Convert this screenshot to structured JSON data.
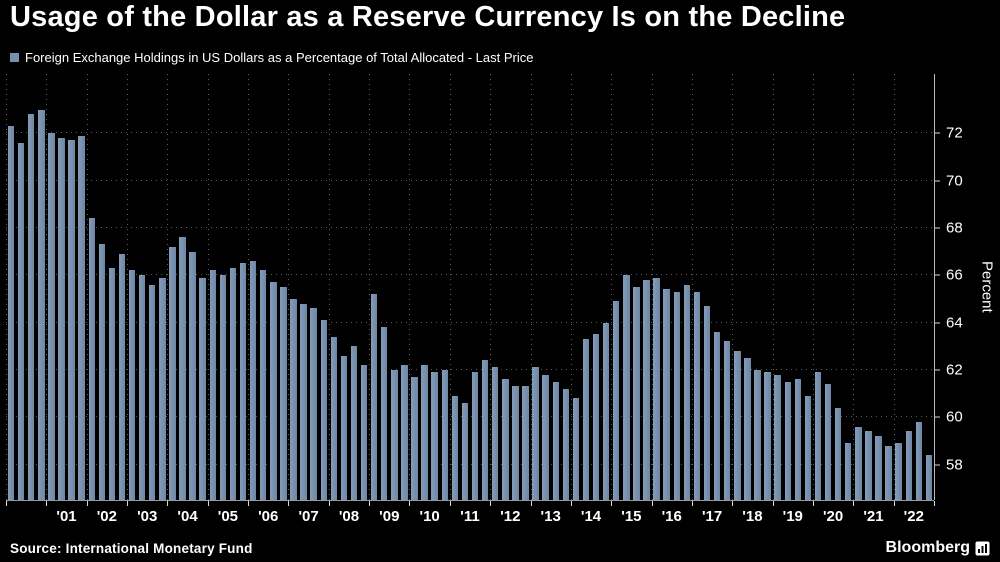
{
  "title": "Usage of the Dollar as a Reserve Currency Is on the Decline",
  "legend": {
    "label": "Foreign Exchange Holdings in US Dollars as a Percentage of Total Allocated - Last Price",
    "marker_color": "#7590ac"
  },
  "footer": {
    "source": "Source: International Monetary Fund",
    "brand": "Bloomberg"
  },
  "colors": {
    "background": "#000000",
    "bar": "#7590ac",
    "grid": "#5a5a5a",
    "text": "#ffffff"
  },
  "chart_data": {
    "type": "bar",
    "title": "Usage of the Dollar as a Reserve Currency Is on the Decline",
    "series_name": "Foreign Exchange Holdings in US Dollars as a Percentage of Total Allocated - Last Price",
    "xlabel": "",
    "ylabel": "Percent",
    "yticks": [
      58,
      60,
      62,
      64,
      66,
      68,
      70,
      72
    ],
    "ylim": [
      56.5,
      74.5
    ],
    "frequency": "quarterly",
    "x_start": "2000 Q1",
    "x_end": "2022 Q4",
    "year_labels": [
      "'01",
      "'02",
      "'03",
      "'04",
      "'05",
      "'06",
      "'07",
      "'08",
      "'09",
      "'10",
      "'11",
      "'12",
      "'13",
      "'14",
      "'15",
      "'16",
      "'17",
      "'18",
      "'19",
      "'20",
      "'21",
      "'22"
    ],
    "values": [
      72.3,
      71.6,
      72.8,
      73.0,
      72.0,
      71.8,
      71.7,
      71.9,
      68.4,
      67.3,
      66.3,
      66.9,
      66.2,
      66.0,
      65.6,
      65.9,
      67.2,
      67.6,
      67.0,
      65.9,
      66.2,
      66.0,
      66.3,
      66.5,
      66.6,
      66.2,
      65.7,
      65.5,
      65.0,
      64.8,
      64.6,
      64.1,
      63.4,
      62.6,
      63.0,
      62.2,
      65.2,
      63.8,
      62.0,
      62.2,
      61.7,
      62.2,
      61.9,
      62.0,
      60.9,
      60.6,
      61.9,
      62.4,
      62.1,
      61.6,
      61.3,
      61.3,
      62.1,
      61.8,
      61.5,
      61.2,
      60.8,
      63.3,
      63.5,
      64.0,
      64.9,
      66.0,
      65.5,
      65.8,
      65.9,
      65.4,
      65.3,
      65.6,
      65.3,
      64.7,
      63.6,
      63.2,
      62.8,
      62.5,
      62.0,
      61.9,
      61.8,
      61.5,
      61.6,
      60.9,
      61.9,
      61.4,
      60.4,
      58.9,
      59.6,
      59.4,
      59.2,
      58.8,
      58.9,
      59.4,
      59.8,
      58.4
    ],
    "grid": true,
    "legend_position": "top-left",
    "background": "#000000",
    "bar_color": "#7590ac"
  }
}
